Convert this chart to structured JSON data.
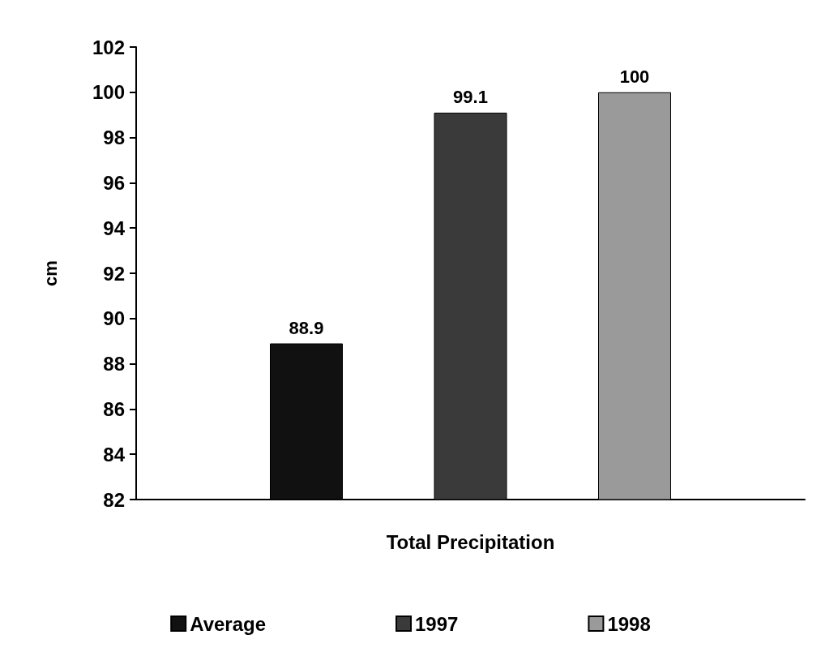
{
  "chart_data": {
    "type": "bar",
    "categories": [
      "Total Precipitation"
    ],
    "ylabel": "cm",
    "series": [
      {
        "name": "Average",
        "color": "#111111",
        "values": [
          88.9
        ]
      },
      {
        "name": "1997",
        "color": "#3a3a3a",
        "values": [
          99.1
        ]
      },
      {
        "name": "1998",
        "color": "#9a9a9a",
        "values": [
          100
        ]
      }
    ],
    "ylim": [
      82,
      102
    ],
    "yticks": [
      82,
      84,
      86,
      88,
      90,
      92,
      94,
      96,
      98,
      100,
      102
    ],
    "grid": false,
    "legend": "bottom",
    "data_labels": true
  }
}
